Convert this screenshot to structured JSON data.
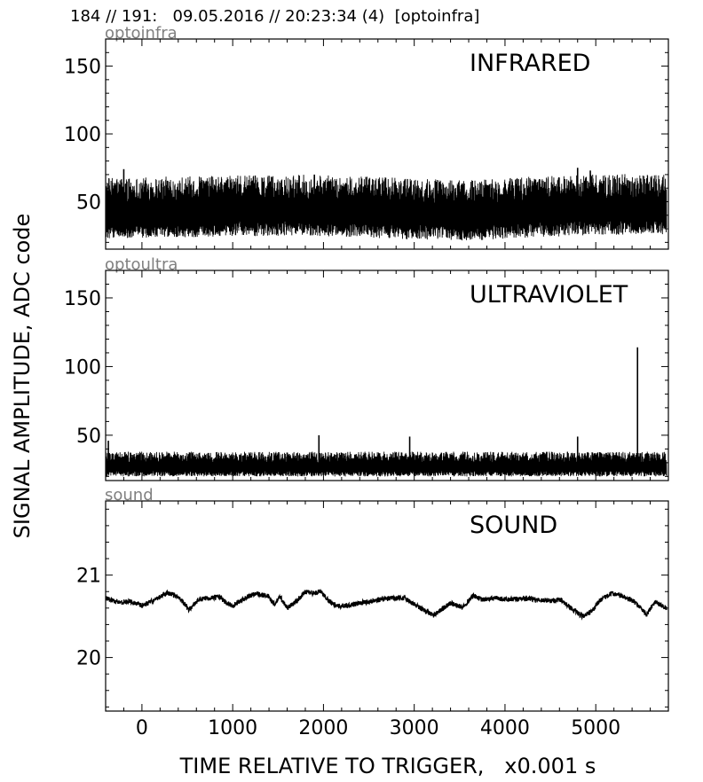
{
  "header": {
    "text": "184 // 191:   09.05.2016 // 20:23:34 (4)  [optoinfra]"
  },
  "ylabel": "SIGNAL AMPLITUDE,  ADC code",
  "xlabel": "TIME RELATIVE TO TRIGGER,   x0.001 s",
  "colors": {
    "trace": "#000000",
    "channel_label": "#808080",
    "axes": "#000000"
  },
  "chart_data": [
    {
      "type": "line",
      "channel": "optoinfra",
      "title": "INFRARED",
      "xlim": [
        -400,
        5800
      ],
      "ylim": [
        15,
        170
      ],
      "x_ticks": [
        0,
        1000,
        2000,
        3000,
        4000,
        5000
      ],
      "y_ticks": [
        50,
        100,
        150
      ],
      "x_tick_labels_visible": false,
      "series": [
        {
          "x_start": -400,
          "x_end": 5780,
          "baseline": 40,
          "noise_min": 23,
          "noise_max": 68,
          "envelope": [
            [
              -400,
              40
            ],
            [
              1800,
              42
            ],
            [
              3500,
              38
            ],
            [
              4800,
              42
            ],
            [
              5780,
              43
            ]
          ],
          "spikes": [
            [
              -200,
              74
            ],
            [
              1900,
              70
            ],
            [
              4800,
              75
            ],
            [
              4940,
              73
            ]
          ]
        }
      ]
    },
    {
      "type": "line",
      "channel": "optoultra",
      "title": "ULTRAVIOLET",
      "xlim": [
        -400,
        5800
      ],
      "ylim": [
        17,
        170
      ],
      "x_ticks": [
        0,
        1000,
        2000,
        3000,
        4000,
        5000
      ],
      "y_ticks": [
        50,
        100,
        150
      ],
      "x_tick_labels_visible": false,
      "series": [
        {
          "x_start": -400,
          "x_end": 5780,
          "baseline": 26,
          "noise_min": 20,
          "noise_max": 38,
          "spikes": [
            [
              -370,
              46
            ],
            [
              1950,
              50
            ],
            [
              2950,
              49
            ],
            [
              4800,
              49
            ],
            [
              5460,
              114
            ]
          ]
        }
      ]
    },
    {
      "type": "line",
      "channel": "sound",
      "title": "SOUND",
      "xlim": [
        -400,
        5800
      ],
      "ylim": [
        19.35,
        21.9
      ],
      "x_ticks": [
        0,
        1000,
        2000,
        3000,
        4000,
        5000
      ],
      "x_tick_labels": [
        "0",
        "1000",
        "2000",
        "3000",
        "4000",
        "5000"
      ],
      "y_ticks": [
        20,
        21
      ],
      "x_tick_labels_visible": true,
      "series": [
        {
          "x_start": -400,
          "x_end": 5780,
          "points": [
            [
              -400,
              20.72
            ],
            [
              -250,
              20.67
            ],
            [
              -120,
              20.68
            ],
            [
              0,
              20.63
            ],
            [
              150,
              20.7
            ],
            [
              280,
              20.79
            ],
            [
              420,
              20.72
            ],
            [
              520,
              20.58
            ],
            [
              620,
              20.7
            ],
            [
              720,
              20.72
            ],
            [
              850,
              20.74
            ],
            [
              920,
              20.67
            ],
            [
              1000,
              20.63
            ],
            [
              1100,
              20.7
            ],
            [
              1250,
              20.78
            ],
            [
              1400,
              20.74
            ],
            [
              1460,
              20.64
            ],
            [
              1520,
              20.74
            ],
            [
              1600,
              20.6
            ],
            [
              1700,
              20.68
            ],
            [
              1800,
              20.8
            ],
            [
              1900,
              20.78
            ],
            [
              1970,
              20.8
            ],
            [
              2050,
              20.7
            ],
            [
              2150,
              20.62
            ],
            [
              2300,
              20.64
            ],
            [
              2450,
              20.67
            ],
            [
              2600,
              20.7
            ],
            [
              2750,
              20.72
            ],
            [
              2900,
              20.72
            ],
            [
              2980,
              20.66
            ],
            [
              3100,
              20.58
            ],
            [
              3220,
              20.51
            ],
            [
              3320,
              20.6
            ],
            [
              3400,
              20.66
            ],
            [
              3530,
              20.61
            ],
            [
              3650,
              20.75
            ],
            [
              3750,
              20.7
            ],
            [
              3900,
              20.72
            ],
            [
              4050,
              20.7
            ],
            [
              4200,
              20.72
            ],
            [
              4350,
              20.7
            ],
            [
              4500,
              20.69
            ],
            [
              4620,
              20.7
            ],
            [
              4750,
              20.58
            ],
            [
              4850,
              20.5
            ],
            [
              4950,
              20.55
            ],
            [
              5050,
              20.7
            ],
            [
              5180,
              20.78
            ],
            [
              5300,
              20.74
            ],
            [
              5420,
              20.68
            ],
            [
              5480,
              20.62
            ],
            [
              5560,
              20.52
            ],
            [
              5650,
              20.68
            ],
            [
              5780,
              20.6
            ]
          ],
          "noise_amplitude": 0.03
        }
      ]
    }
  ]
}
